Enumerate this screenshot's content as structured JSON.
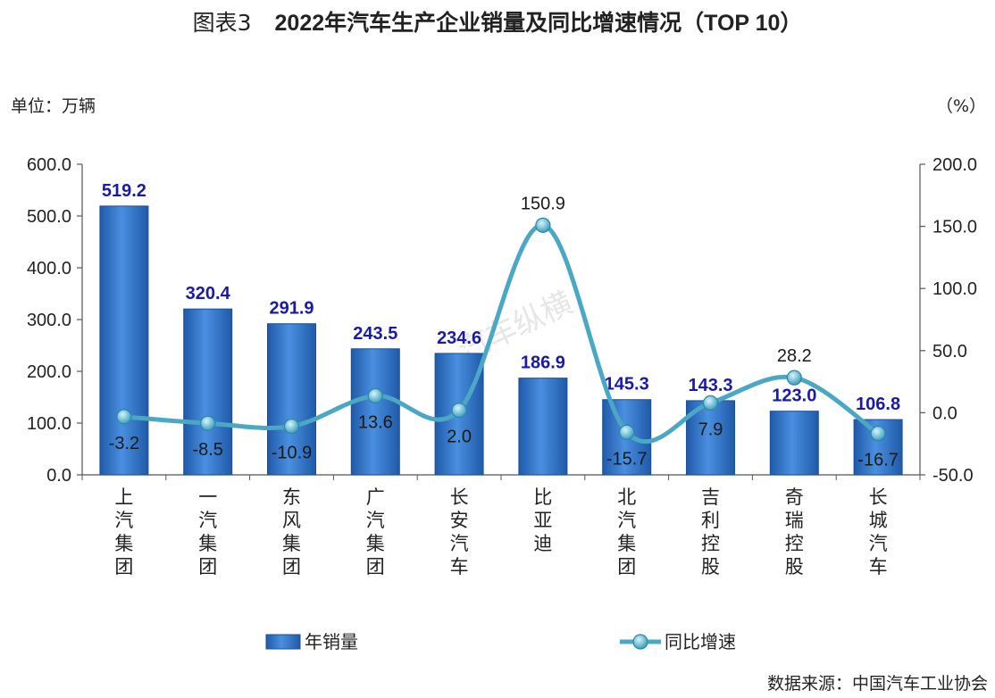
{
  "title_prefix": "图表3",
  "title_main": "2022年汽车生产企业销量及同比增速情况（TOP 10）",
  "unit_left": "单位：万辆",
  "unit_right": "（%）",
  "source": "数据来源：中国汽车工业协会",
  "watermark": "汽车纵横",
  "colors": {
    "bar": "#2e6fc0",
    "line": "#4aa8c4"
  },
  "chart_data": {
    "type": "bar",
    "categories": [
      "上汽集团",
      "一汽集团",
      "东风集团",
      "广汽集团",
      "长安汽车",
      "比亚迪",
      "北汽集团",
      "吉利控股",
      "奇瑞控股",
      "长城汽车"
    ],
    "series": [
      {
        "name": "年销量",
        "type": "bar",
        "axis": "left",
        "values": [
          519.2,
          320.4,
          291.9,
          243.5,
          234.6,
          186.9,
          145.3,
          143.3,
          123.0,
          106.8
        ]
      },
      {
        "name": "同比增速",
        "type": "line",
        "axis": "right",
        "values": [
          -3.2,
          -8.5,
          -10.9,
          13.6,
          2.0,
          150.9,
          -15.7,
          7.9,
          28.2,
          -16.7
        ]
      }
    ],
    "y_left": {
      "range": [
        0,
        600
      ],
      "ticks": [
        "0.0",
        "100.0",
        "200.0",
        "300.0",
        "400.0",
        "500.0",
        "600.0"
      ]
    },
    "y_right": {
      "range": [
        -50,
        200
      ],
      "ticks": [
        "-50.0",
        "0.0",
        "50.0",
        "100.0",
        "150.0",
        "200.0"
      ]
    },
    "legend": {
      "position": "bottom",
      "entries": [
        "年销量",
        "同比增速"
      ]
    },
    "grid": false
  }
}
